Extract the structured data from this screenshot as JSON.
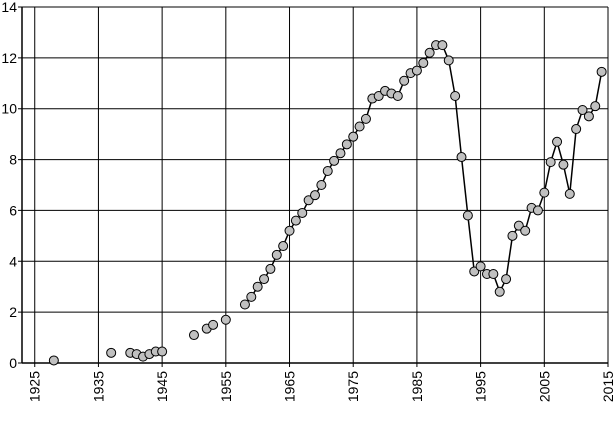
{
  "chart_data": {
    "type": "line",
    "x": [
      1928,
      1930,
      1937,
      1938,
      1940,
      1941,
      1942,
      1943,
      1944,
      1945,
      1946,
      1950,
      1951,
      1952,
      1953,
      1954,
      1955,
      1956,
      1958,
      1959,
      1960,
      1961,
      1962,
      1963,
      1964,
      1965,
      1966,
      1967,
      1968,
      1969,
      1970,
      1971,
      1972,
      1973,
      1974,
      1975,
      1976,
      1977,
      1978,
      1979,
      1980,
      1981,
      1982,
      1983,
      1984,
      1985,
      1986,
      1987,
      1988,
      1989,
      1990,
      1991,
      1992,
      1993,
      1994,
      1995,
      1996,
      1997,
      1998,
      1999,
      2000,
      2001,
      2002,
      2003,
      2004,
      2005,
      2006,
      2007,
      2008,
      2009,
      2010,
      2011,
      2012,
      2013,
      2014
    ],
    "series": [
      {
        "color": "#c0c0c0",
        "values": [
          0.1,
          null,
          0.4,
          null,
          0.4,
          0.35,
          0.25,
          0.35,
          0.45,
          0.45,
          null,
          1.1,
          null,
          1.35,
          1.5,
          null,
          1.7,
          null,
          2.3,
          2.6,
          3.0,
          3.3,
          3.7,
          4.25,
          4.6,
          5.2,
          5.6,
          5.9,
          6.4,
          6.6,
          7.0,
          7.55,
          7.95,
          8.25,
          8.6,
          8.9,
          9.3,
          9.6,
          10.4,
          10.5,
          10.7,
          10.6,
          10.5,
          11.1,
          11.4,
          11.5,
          11.8,
          12.2,
          12.5,
          12.5,
          11.9,
          10.5,
          8.1,
          5.8,
          3.6,
          3.8,
          3.5,
          3.5,
          2.8,
          3.3,
          5.0,
          5.4,
          5.2,
          6.1,
          6.0,
          6.7,
          7.9,
          8.7,
          7.8,
          6.65,
          9.2,
          9.95,
          9.7,
          10.1,
          11.45
        ]
      }
    ],
    "xlim": [
      1923,
      2015
    ],
    "xticks": [
      1925,
      1935,
      1945,
      1955,
      1965,
      1975,
      1985,
      1995,
      2005,
      2015
    ],
    "ylim": [
      0,
      14
    ],
    "yticks": [
      0,
      2,
      4,
      6,
      8,
      10,
      12,
      14
    ],
    "grid": true
  }
}
